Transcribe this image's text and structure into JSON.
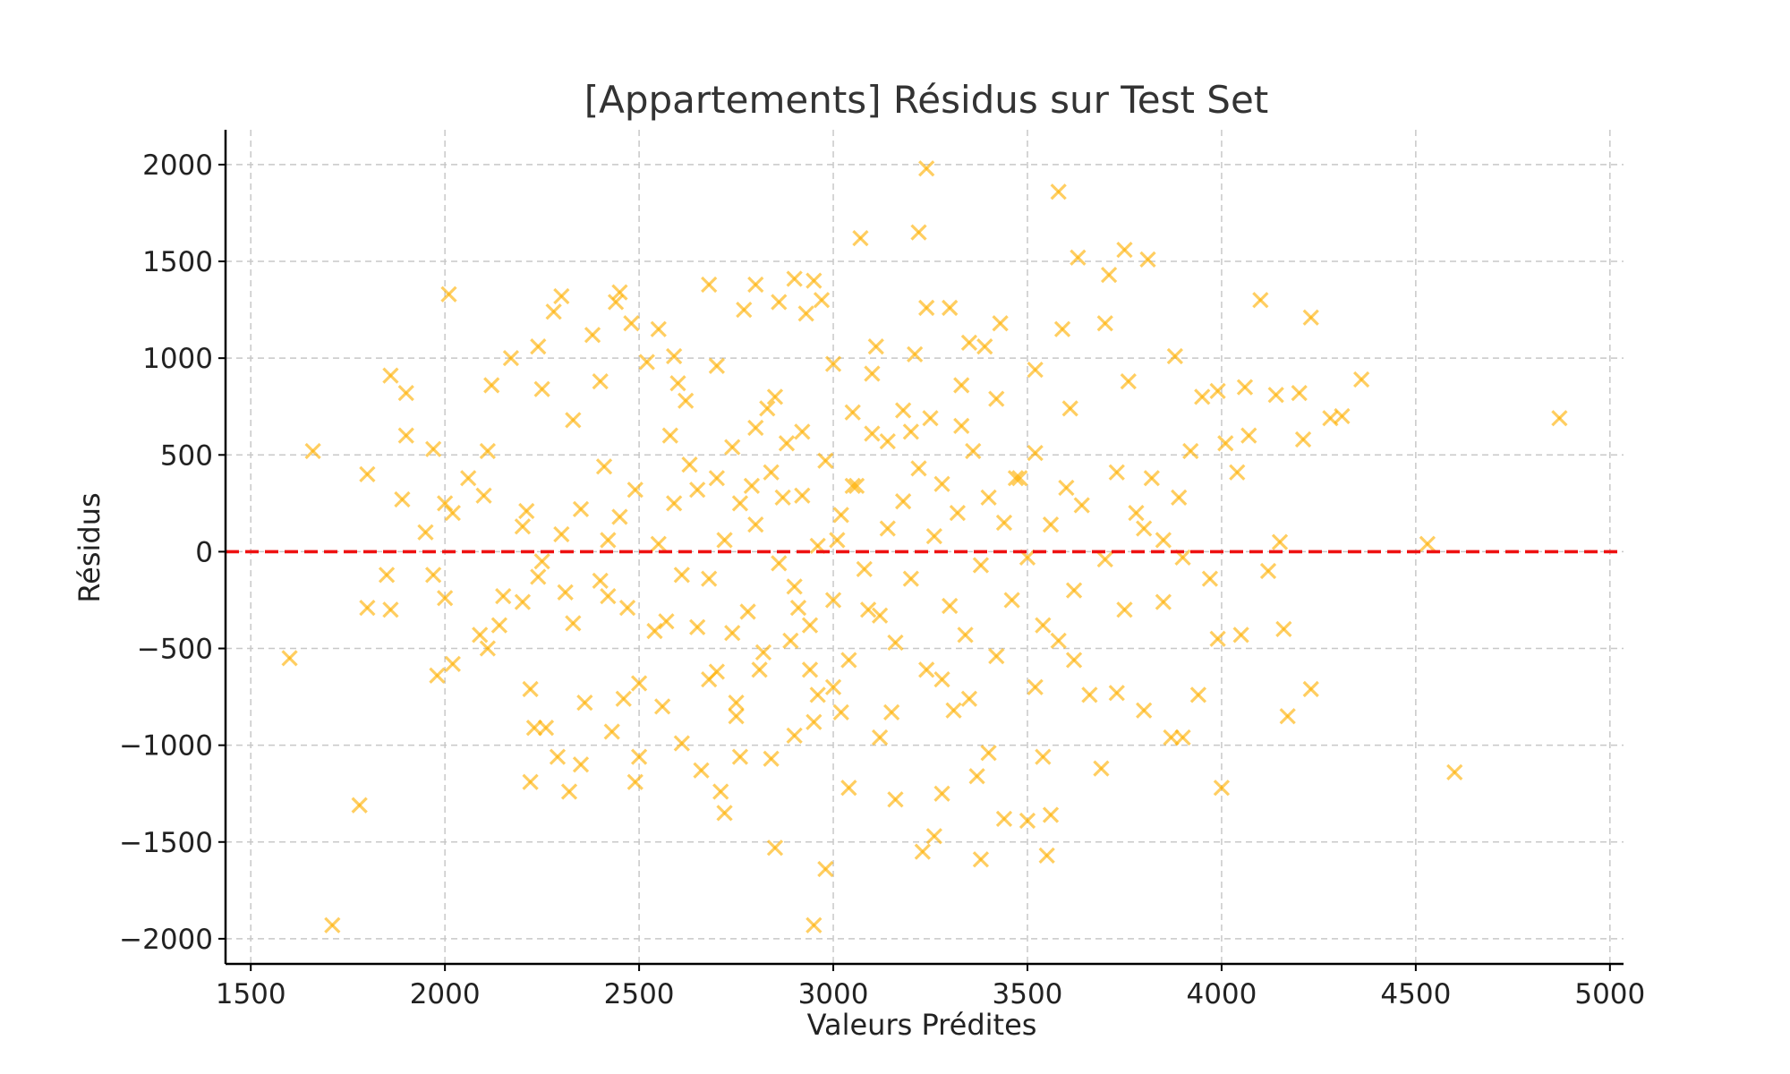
{
  "chart_data": {
    "type": "scatter",
    "title": "[Appartements] Résidus sur Test Set",
    "xlabel": "Valeurs Prédites",
    "ylabel": "Résidus",
    "xlim": [
      1435,
      5035
    ],
    "ylim": [
      -2130,
      2180
    ],
    "xticks": [
      1500,
      2000,
      2500,
      3000,
      3500,
      4000,
      4500,
      5000
    ],
    "xtick_labels": [
      "1500",
      "2000",
      "2500",
      "3000",
      "3500",
      "4000",
      "4500",
      "5000"
    ],
    "yticks": [
      2000,
      1500,
      1000,
      500,
      0,
      -500,
      -1000,
      -1500,
      -2000
    ],
    "ytick_labels": [
      "2000",
      "1500",
      "1000",
      "500",
      "0",
      "−500",
      "−1000",
      "−1500",
      "−2000"
    ],
    "grid": true,
    "marker": "x",
    "marker_color": "#FFB000",
    "reference_line": {
      "y": 0,
      "style": "dashed",
      "color": "#EE1111"
    },
    "series": [
      {
        "points": [
          [
            1600,
            -550
          ],
          [
            1660,
            520
          ],
          [
            1710,
            -1930
          ],
          [
            1780,
            -1310
          ],
          [
            1800,
            400
          ],
          [
            1800,
            -290
          ],
          [
            1850,
            -120
          ],
          [
            1860,
            910
          ],
          [
            1860,
            -300
          ],
          [
            1890,
            270
          ],
          [
            1900,
            820
          ],
          [
            1900,
            600
          ],
          [
            1950,
            100
          ],
          [
            1970,
            530
          ],
          [
            1970,
            -120
          ],
          [
            1980,
            -640
          ],
          [
            2000,
            -240
          ],
          [
            2000,
            250
          ],
          [
            2010,
            1330
          ],
          [
            2020,
            -580
          ],
          [
            2020,
            200
          ],
          [
            2060,
            380
          ],
          [
            2090,
            -430
          ],
          [
            2100,
            290
          ],
          [
            2110,
            520
          ],
          [
            2110,
            -500
          ],
          [
            2120,
            860
          ],
          [
            2140,
            -380
          ],
          [
            2170,
            1000
          ],
          [
            2200,
            -260
          ],
          [
            2210,
            210
          ],
          [
            2220,
            -710
          ],
          [
            2220,
            -1190
          ],
          [
            2230,
            -910
          ],
          [
            2240,
            1060
          ],
          [
            2240,
            -130
          ],
          [
            2250,
            840
          ],
          [
            2260,
            -910
          ],
          [
            2280,
            1240
          ],
          [
            2290,
            -1060
          ],
          [
            2300,
            1320
          ],
          [
            2310,
            -210
          ],
          [
            2320,
            -1240
          ],
          [
            2330,
            680
          ],
          [
            2350,
            220
          ],
          [
            2350,
            -1100
          ],
          [
            2360,
            -780
          ],
          [
            2380,
            1120
          ],
          [
            2400,
            880
          ],
          [
            2410,
            440
          ],
          [
            2420,
            -230
          ],
          [
            2430,
            -930
          ],
          [
            2440,
            1290
          ],
          [
            2450,
            1340
          ],
          [
            2460,
            -760
          ],
          [
            2480,
            1180
          ],
          [
            2490,
            -1190
          ],
          [
            2500,
            -1060
          ],
          [
            2520,
            980
          ],
          [
            2540,
            -410
          ],
          [
            2550,
            1150
          ],
          [
            2560,
            -800
          ],
          [
            2580,
            600
          ],
          [
            2590,
            1010
          ],
          [
            2610,
            -990
          ],
          [
            2620,
            780
          ],
          [
            2650,
            -390
          ],
          [
            2660,
            -1130
          ],
          [
            2680,
            1380
          ],
          [
            2700,
            -620
          ],
          [
            2710,
            -1240
          ],
          [
            2720,
            -1350
          ],
          [
            2740,
            540
          ],
          [
            2750,
            -850
          ],
          [
            2760,
            -1060
          ],
          [
            2770,
            1250
          ],
          [
            2790,
            340
          ],
          [
            2800,
            1380
          ],
          [
            2810,
            -610
          ],
          [
            2830,
            740
          ],
          [
            2840,
            -1070
          ],
          [
            2850,
            -1530
          ],
          [
            2860,
            1290
          ],
          [
            2870,
            280
          ],
          [
            2890,
            -460
          ],
          [
            2900,
            1410
          ],
          [
            2910,
            -290
          ],
          [
            2920,
            620
          ],
          [
            2930,
            1230
          ],
          [
            2940,
            -610
          ],
          [
            2950,
            1400
          ],
          [
            2950,
            -1930
          ],
          [
            2960,
            -740
          ],
          [
            2970,
            1300
          ],
          [
            2980,
            -1640
          ],
          [
            3000,
            970
          ],
          [
            3010,
            60
          ],
          [
            3020,
            -830
          ],
          [
            3040,
            -1220
          ],
          [
            3050,
            340
          ],
          [
            3070,
            1620
          ],
          [
            3090,
            -300
          ],
          [
            3110,
            1060
          ],
          [
            3120,
            -960
          ],
          [
            3140,
            570
          ],
          [
            3160,
            -1280
          ],
          [
            3180,
            730
          ],
          [
            3210,
            1020
          ],
          [
            3220,
            1650
          ],
          [
            3230,
            -1550
          ],
          [
            3240,
            1980
          ],
          [
            3240,
            1260
          ],
          [
            3260,
            -1470
          ],
          [
            3280,
            -1250
          ],
          [
            3300,
            1260
          ],
          [
            3310,
            -820
          ],
          [
            3330,
            650
          ],
          [
            3350,
            1080
          ],
          [
            3370,
            -1160
          ],
          [
            3380,
            -1590
          ],
          [
            3390,
            1060
          ],
          [
            3400,
            -1040
          ],
          [
            3420,
            790
          ],
          [
            3430,
            1180
          ],
          [
            3440,
            -1380
          ],
          [
            3470,
            380
          ],
          [
            3500,
            -1390
          ],
          [
            3520,
            940
          ],
          [
            3540,
            -1060
          ],
          [
            3550,
            -1570
          ],
          [
            3560,
            -1360
          ],
          [
            3580,
            1860
          ],
          [
            3590,
            1150
          ],
          [
            3610,
            740
          ],
          [
            3620,
            -560
          ],
          [
            3630,
            1520
          ],
          [
            3660,
            -740
          ],
          [
            3690,
            -1120
          ],
          [
            3700,
            1180
          ],
          [
            3710,
            1430
          ],
          [
            3730,
            -730
          ],
          [
            3750,
            1560
          ],
          [
            3760,
            880
          ],
          [
            3780,
            200
          ],
          [
            3800,
            -820
          ],
          [
            3810,
            1510
          ],
          [
            3820,
            380
          ],
          [
            3850,
            -260
          ],
          [
            3870,
            -960
          ],
          [
            3880,
            1010
          ],
          [
            3890,
            280
          ],
          [
            3900,
            -960
          ],
          [
            3920,
            520
          ],
          [
            3940,
            -740
          ],
          [
            3950,
            800
          ],
          [
            3970,
            -140
          ],
          [
            3990,
            830
          ],
          [
            3990,
            -450
          ],
          [
            4000,
            -1220
          ],
          [
            4010,
            560
          ],
          [
            4040,
            410
          ],
          [
            4050,
            -430
          ],
          [
            4060,
            850
          ],
          [
            4070,
            600
          ],
          [
            4100,
            1300
          ],
          [
            4120,
            -100
          ],
          [
            4140,
            810
          ],
          [
            4150,
            50
          ],
          [
            4160,
            -400
          ],
          [
            4170,
            -850
          ],
          [
            4200,
            820
          ],
          [
            4210,
            580
          ],
          [
            4230,
            1210
          ],
          [
            4230,
            -710
          ],
          [
            4280,
            690
          ],
          [
            4310,
            700
          ],
          [
            4360,
            890
          ],
          [
            4530,
            40
          ],
          [
            4600,
            -1140
          ],
          [
            4870,
            690
          ],
          [
            2650,
            320
          ],
          [
            2680,
            -140
          ],
          [
            2700,
            380
          ],
          [
            2720,
            60
          ],
          [
            2740,
            -420
          ],
          [
            2760,
            250
          ],
          [
            2780,
            -310
          ],
          [
            2800,
            140
          ],
          [
            2820,
            -520
          ],
          [
            2840,
            410
          ],
          [
            2860,
            -60
          ],
          [
            2880,
            560
          ],
          [
            2900,
            -180
          ],
          [
            2920,
            290
          ],
          [
            2940,
            -380
          ],
          [
            2960,
            30
          ],
          [
            2980,
            470
          ],
          [
            3000,
            -250
          ],
          [
            3020,
            190
          ],
          [
            3040,
            -560
          ],
          [
            3060,
            340
          ],
          [
            3080,
            -90
          ],
          [
            3100,
            610
          ],
          [
            3120,
            -330
          ],
          [
            3140,
            120
          ],
          [
            3160,
            -470
          ],
          [
            3180,
            260
          ],
          [
            3200,
            -140
          ],
          [
            3220,
            430
          ],
          [
            3240,
            -610
          ],
          [
            3260,
            80
          ],
          [
            3280,
            350
          ],
          [
            3300,
            -280
          ],
          [
            3320,
            200
          ],
          [
            3340,
            -430
          ],
          [
            3360,
            520
          ],
          [
            3380,
            -70
          ],
          [
            3400,
            280
          ],
          [
            3420,
            -540
          ],
          [
            3440,
            150
          ],
          [
            2550,
            40
          ],
          [
            2570,
            -360
          ],
          [
            2590,
            250
          ],
          [
            2610,
            -120
          ],
          [
            2630,
            450
          ],
          [
            3460,
            -250
          ],
          [
            3480,
            380
          ],
          [
            3500,
            -30
          ],
          [
            3520,
            510
          ],
          [
            3540,
            -380
          ],
          [
            2450,
            180
          ],
          [
            2470,
            -290
          ],
          [
            2490,
            320
          ],
          [
            3560,
            140
          ],
          [
            3580,
            -460
          ],
          [
            3600,
            330
          ],
          [
            2400,
            -150
          ],
          [
            2420,
            60
          ],
          [
            3620,
            -200
          ],
          [
            3640,
            240
          ],
          [
            2750,
            -780
          ],
          [
            2850,
            800
          ],
          [
            2950,
            -880
          ],
          [
            3050,
            720
          ],
          [
            3150,
            -830
          ],
          [
            3250,
            690
          ],
          [
            3350,
            -760
          ],
          [
            2300,
            90
          ],
          [
            3700,
            -40
          ],
          [
            3750,
            -300
          ],
          [
            3800,
            120
          ],
          [
            2250,
            -50
          ],
          [
            2200,
            130
          ],
          [
            3850,
            60
          ],
          [
            3900,
            -30
          ],
          [
            2150,
            -230
          ],
          [
            3730,
            410
          ],
          [
            2330,
            -370
          ],
          [
            2600,
            870
          ],
          [
            2700,
            960
          ],
          [
            3330,
            860
          ],
          [
            2500,
            -680
          ],
          [
            3520,
            -700
          ],
          [
            2800,
            640
          ],
          [
            3000,
            -700
          ],
          [
            3200,
            620
          ],
          [
            2900,
            -950
          ],
          [
            3100,
            920
          ],
          [
            2680,
            -660
          ],
          [
            3280,
            -660
          ]
        ]
      }
    ]
  }
}
